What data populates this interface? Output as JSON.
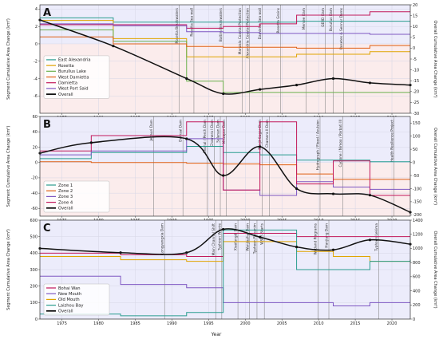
{
  "figure": {
    "xlabel": "Year",
    "x_ticks": [
      1975,
      1980,
      1985,
      1990,
      1995,
      2000,
      2005,
      2010,
      2015,
      2020
    ]
  },
  "chart_data": [
    {
      "type": "line",
      "panel_letter": "A",
      "x_range": [
        1972,
        2022.5
      ],
      "ylabel_left": "Segment Cumulative Area Change (km²)",
      "ylabel_right": "Overall Cumulative Area Change (km²)",
      "ylim_left": [
        -8,
        4.5
      ],
      "ylim_right": [
        -30,
        20
      ],
      "left_ticks": [
        -6,
        -4,
        -2,
        0,
        2,
        4
      ],
      "right_ticks": [
        -30,
        -25,
        -20,
        -15,
        -10,
        -5,
        0,
        5,
        10,
        15,
        20
      ],
      "legend_position": "middle-left",
      "series": [
        {
          "name": "East Alexandria",
          "color": "#2a9d8f",
          "axis": "left",
          "step": true,
          "x": [
            1972,
            1982,
            1992,
            2007,
            2017,
            2022.5
          ],
          "values": [
            3.0,
            2.5,
            2.5,
            2.6,
            2.6,
            2.6
          ]
        },
        {
          "name": "Rosetta",
          "color": "#e0a400",
          "axis": "left",
          "step": true,
          "x": [
            1972,
            1982,
            1992,
            1997,
            2002,
            2007,
            2017,
            2022.5
          ],
          "values": [
            2.7,
            0.6,
            -1.5,
            -1.5,
            -1.5,
            -1.2,
            -0.9,
            -0.9
          ]
        },
        {
          "name": "Burullus Lake",
          "color": "#6ab04c",
          "axis": "left",
          "step": true,
          "x": [
            1972,
            1982,
            1992,
            1997,
            2007,
            2022.5
          ],
          "values": [
            1.6,
            0.3,
            -4.3,
            -5.6,
            -5.6,
            -5.6
          ]
        },
        {
          "name": "West Damietta",
          "color": "#e06014",
          "axis": "left",
          "step": true,
          "x": [
            1972,
            1982,
            1992,
            1997,
            2007,
            2017,
            2022.5
          ],
          "values": [
            0.8,
            0.0,
            -0.3,
            -0.4,
            -0.5,
            -0.2,
            -0.2
          ]
        },
        {
          "name": "Damietta",
          "color": "#c2185b",
          "axis": "left",
          "step": true,
          "x": [
            1972,
            1982,
            1992,
            1997,
            2002,
            2007,
            2017,
            2022.5
          ],
          "values": [
            2.2,
            2.2,
            1.8,
            2.0,
            2.3,
            3.3,
            3.7,
            3.7
          ]
        },
        {
          "name": "West Port Said",
          "color": "#7e57c2",
          "axis": "left",
          "step": true,
          "x": [
            1972,
            1982,
            1992,
            1997,
            2002,
            2017,
            2022.5
          ],
          "values": [
            2.3,
            2.1,
            1.4,
            1.3,
            1.2,
            1.1,
            1.1
          ]
        },
        {
          "name": "Overall",
          "color": "#111111",
          "axis": "right",
          "step": false,
          "x": [
            1972,
            1982,
            1992,
            1997,
            2002,
            2007,
            2012,
            2017,
            2022.5
          ],
          "values": [
            13,
            1,
            -14,
            -21,
            -19,
            -17,
            -14,
            -16,
            -17
          ]
        }
      ],
      "annotations": [
        {
          "x": 1991,
          "text": "Rosetta Breakwaters"
        },
        {
          "x": 1993,
          "text": "Rosetta Sea wall"
        },
        {
          "x": 1997,
          "text": "Baltim Breakwaters"
        },
        {
          "x": 1999.6,
          "text": "Manzala Coastal Protection"
        },
        {
          "x": 2000.6,
          "text": "Alexandria Coastal Protection"
        },
        {
          "x": 2002.3,
          "text": "Damietta Sea wall"
        },
        {
          "x": 2004.8,
          "text": "Rosetta Groins"
        },
        {
          "x": 2008.3,
          "text": "Mersee Dam"
        },
        {
          "x": 2010.9,
          "text": "GERD Dam"
        },
        {
          "x": 2012,
          "text": "Burullus Dam"
        },
        {
          "x": 2013.4,
          "text": "Rosetes & Sennar Dams"
        }
      ]
    },
    {
      "type": "line",
      "panel_letter": "B",
      "x_range": [
        1972,
        2022.5
      ],
      "ylabel_left": "Segment Cumulative Area Change (km²)",
      "ylabel_right": "Overall Cumulative Area Change (km²)",
      "ylim_left": [
        -70,
        60
      ],
      "ylim_right": [
        -205,
        175
      ],
      "left_ticks": [
        -60,
        -40,
        -20,
        0,
        20,
        40,
        60
      ],
      "right_ticks": [
        -200,
        -150,
        -100,
        -50,
        0,
        50,
        100,
        150
      ],
      "legend_position": "lower-left",
      "series": [
        {
          "name": "Zone 1",
          "color": "#2a9d8f",
          "axis": "left",
          "step": true,
          "x": [
            1972,
            1979,
            1992,
            1997,
            2002,
            2007,
            2017,
            2022.5
          ],
          "values": [
            5,
            13,
            21,
            13,
            10,
            3,
            1,
            1
          ]
        },
        {
          "name": "Zone 2",
          "color": "#e06014",
          "axis": "left",
          "step": true,
          "x": [
            1972,
            1979,
            1992,
            1997,
            2002,
            2007,
            2012,
            2022.5
          ],
          "values": [
            1,
            0,
            -1,
            -2,
            -3,
            -15,
            -22,
            -22
          ]
        },
        {
          "name": "Zone 3",
          "color": "#7e57c2",
          "axis": "left",
          "step": true,
          "x": [
            1972,
            1979,
            1992,
            1997,
            2002,
            2007,
            2012,
            2017,
            2022.5
          ],
          "values": [
            10,
            15,
            31,
            -36,
            -43,
            -25,
            -32,
            -35,
            -35
          ]
        },
        {
          "name": "Zone 4",
          "color": "#c2185b",
          "axis": "left",
          "step": true,
          "x": [
            1972,
            1979,
            1992,
            1997,
            2002,
            2007,
            2012,
            2017,
            2022.5
          ],
          "values": [
            15,
            35,
            53,
            -36,
            53,
            -28,
            2,
            -43,
            -43
          ]
        },
        {
          "name": "Overall",
          "color": "#111111",
          "axis": "right",
          "step": false,
          "x": [
            1972,
            1979,
            1992,
            1997,
            2002,
            2007,
            2012,
            2017,
            2022.5
          ],
          "values": [
            35,
            75,
            90,
            -50,
            60,
            -100,
            -120,
            -125,
            -190
          ]
        }
      ],
      "annotations": [
        {
          "x": 1987.5,
          "text": "Jenauri Dam"
        },
        {
          "x": 1991.5,
          "text": "Damsal Dam"
        },
        {
          "x": 1994.8,
          "text": "Chohal / Perch Dam"
        },
        {
          "x": 1995.8,
          "text": "Chamera I Dam"
        },
        {
          "x": 1996.6,
          "text": "Salanan Dam"
        },
        {
          "x": 1997.4,
          "text": "Mirzapur Dam"
        },
        {
          "x": 2002.3,
          "text": "Ranjit Sagar Dam"
        },
        {
          "x": 2003.3,
          "text": "Chamera II Dam"
        },
        {
          "x": 2010.2,
          "text": "Hydrograph / Flood / Avulsion"
        },
        {
          "x": 2013.3,
          "text": "Cyclone / Nimoo / Parbati III"
        },
        {
          "x": 2020.3,
          "text": "Health Resilience Project"
        }
      ]
    },
    {
      "type": "line",
      "panel_letter": "C",
      "x_range": [
        1972,
        2022.5
      ],
      "ylabel_left": "Segment Cumulative Area Change (km²)",
      "ylabel_right": "Overall Cumulative Area Change (km²)",
      "ylim_left": [
        0,
        600
      ],
      "ylim_right": [
        0,
        1400
      ],
      "left_ticks": [
        0,
        100,
        200,
        300,
        400,
        500,
        600
      ],
      "right_ticks": [
        0,
        200,
        400,
        600,
        800,
        1000,
        1200,
        1400
      ],
      "legend_position": "lower-left",
      "series": [
        {
          "name": "Bohai Wan",
          "color": "#c2185b",
          "axis": "left",
          "step": true,
          "x": [
            1972,
            1983,
            1992,
            1997,
            2007,
            2017,
            2022.5
          ],
          "values": [
            400,
            390,
            380,
            520,
            500,
            500,
            500
          ]
        },
        {
          "name": "New Mouth",
          "color": "#7e57c2",
          "axis": "left",
          "step": true,
          "x": [
            1972,
            1983,
            1992,
            1997,
            2007,
            2012,
            2017,
            2022.5
          ],
          "values": [
            260,
            210,
            190,
            100,
            100,
            80,
            100,
            100
          ]
        },
        {
          "name": "Old Mouth",
          "color": "#e0a400",
          "axis": "left",
          "step": true,
          "x": [
            1972,
            1983,
            1992,
            1997,
            2007,
            2012,
            2017,
            2022.5
          ],
          "values": [
            380,
            360,
            350,
            470,
            410,
            380,
            350,
            350
          ]
        },
        {
          "name": "Laizhou Bay",
          "color": "#2a9d8f",
          "axis": "left",
          "step": true,
          "x": [
            1972,
            1983,
            1992,
            1997,
            2007,
            2012,
            2017,
            2022.5
          ],
          "values": [
            30,
            20,
            40,
            540,
            300,
            300,
            350,
            360
          ]
        },
        {
          "name": "Overall",
          "color": "#111111",
          "axis": "right",
          "step": false,
          "x": [
            1972,
            1983,
            1992,
            1997,
            2002,
            2007,
            2012,
            2017,
            2022.5
          ],
          "values": [
            1000,
            940,
            940,
            1270,
            1160,
            1020,
            980,
            1120,
            1060
          ]
        }
      ],
      "annotations": [
        {
          "x": 1989,
          "text": "Longyangxia Dam"
        },
        {
          "x": 1996,
          "text": "Main Channel Shift"
        },
        {
          "x": 1996.8,
          "text": "Typhoon Winnie"
        },
        {
          "x": 1999,
          "text": "Xiaolangdi Dam"
        },
        {
          "x": 2000.6,
          "text": "Wanjiazhai Dam"
        },
        {
          "x": 2001.6,
          "text": "Typhoon Rananim"
        },
        {
          "x": 2002.6,
          "text": "WSRS Starts"
        },
        {
          "x": 2009.9,
          "text": "Wetland Programs"
        },
        {
          "x": 2011.4,
          "text": "Hanjiang Dam"
        },
        {
          "x": 2018.2,
          "text": "Typhoon Lekima"
        }
      ]
    }
  ]
}
